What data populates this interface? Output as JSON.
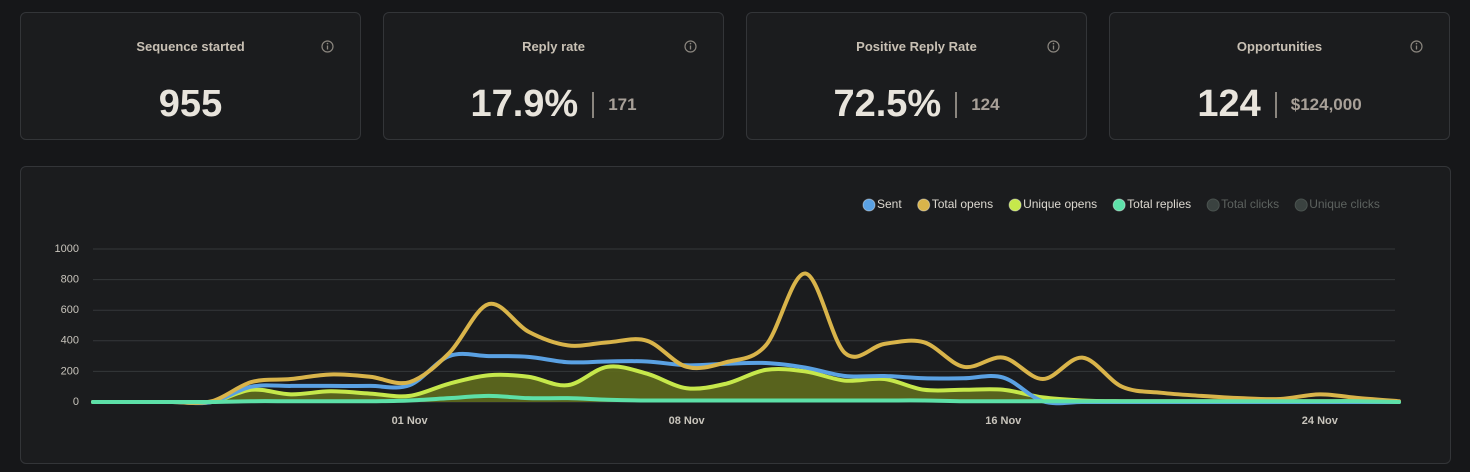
{
  "cards": [
    {
      "title": "Sequence started",
      "value": "955"
    },
    {
      "title": "Reply rate",
      "value": "17.9%",
      "secondary": "171"
    },
    {
      "title": "Positive Reply Rate",
      "value": "72.5%",
      "secondary": "124"
    },
    {
      "title": "Opportunities",
      "value": "124",
      "secondary": "$124,000"
    }
  ],
  "chart_data": {
    "type": "line",
    "categories": [
      null,
      null,
      null,
      null,
      null,
      null,
      null,
      null,
      "01 Nov",
      null,
      null,
      null,
      null,
      null,
      null,
      "08 Nov",
      null,
      null,
      null,
      null,
      null,
      null,
      null,
      "16 Nov",
      null,
      null,
      null,
      null,
      null,
      null,
      null,
      "24 Nov",
      null,
      null
    ],
    "ylim": [
      0,
      1000
    ],
    "yticks": [
      0,
      200,
      400,
      600,
      800,
      1000
    ],
    "grid": true,
    "legend": "top-right",
    "series": [
      {
        "name": "Sent",
        "color": "#5aa1e3",
        "values": [
          0,
          0,
          0,
          0,
          100,
          105,
          105,
          105,
          110,
          300,
          300,
          295,
          260,
          265,
          265,
          240,
          250,
          255,
          225,
          170,
          170,
          155,
          155,
          160,
          5,
          0,
          0,
          0,
          0,
          0,
          0,
          0,
          0,
          0
        ]
      },
      {
        "name": "Total opens",
        "color": "#d9b44a",
        "values": [
          0,
          0,
          0,
          5,
          130,
          150,
          180,
          165,
          130,
          320,
          640,
          460,
          370,
          390,
          400,
          230,
          260,
          370,
          840,
          320,
          380,
          390,
          230,
          290,
          150,
          290,
          100,
          60,
          40,
          25,
          20,
          50,
          25,
          5
        ]
      },
      {
        "name": "Unique opens",
        "color": "#c6e84b",
        "fill": "#5f6b1d",
        "values": [
          0,
          0,
          0,
          0,
          80,
          50,
          70,
          55,
          40,
          120,
          175,
          165,
          110,
          230,
          185,
          90,
          120,
          210,
          200,
          140,
          150,
          80,
          80,
          80,
          30,
          10,
          5,
          5,
          5,
          5,
          5,
          5,
          5,
          0
        ]
      },
      {
        "name": "Total replies",
        "color": "#5de0a8",
        "values": [
          0,
          0,
          0,
          0,
          5,
          5,
          5,
          5,
          10,
          25,
          40,
          25,
          25,
          15,
          10,
          10,
          10,
          10,
          10,
          10,
          10,
          10,
          5,
          5,
          5,
          5,
          5,
          5,
          5,
          5,
          5,
          5,
          5,
          0
        ]
      },
      {
        "name": "Total clicks",
        "color": "#3a4240",
        "hidden": true
      },
      {
        "name": "Unique clicks",
        "color": "#3a4240",
        "hidden": true
      }
    ]
  }
}
